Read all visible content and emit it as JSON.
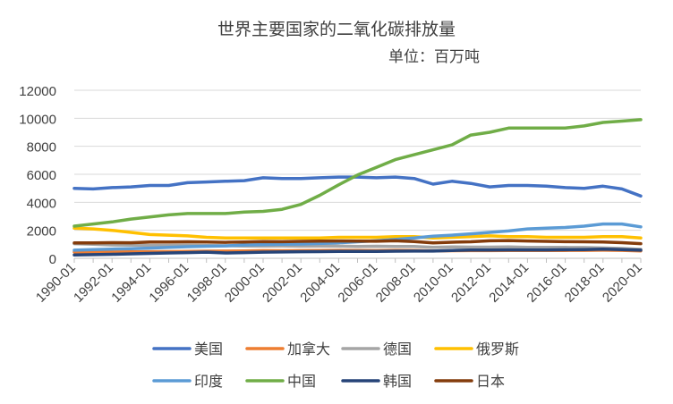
{
  "chart_data": {
    "type": "line",
    "title": "世界主要国家的二氧化碳排放量",
    "subtitle": "单位：百万吨",
    "xlabel": "",
    "ylabel": "",
    "ylim": [
      0,
      12000
    ],
    "yticks": [
      "0",
      "2000",
      "4000",
      "6000",
      "8000",
      "10000",
      "12000"
    ],
    "x": [
      "1990-01",
      "1991-01",
      "1992-01",
      "1993-01",
      "1994-01",
      "1995-01",
      "1996-01",
      "1997-01",
      "1998-01",
      "1999-01",
      "2000-01",
      "2001-01",
      "2002-01",
      "2003-01",
      "2004-01",
      "2005-01",
      "2006-01",
      "2007-01",
      "2008-01",
      "2009-01",
      "2010-01",
      "2011-01",
      "2012-01",
      "2013-01",
      "2014-01",
      "2015-01",
      "2016-01",
      "2017-01",
      "2018-01",
      "2019-01",
      "2020-01"
    ],
    "xtick_labels": [
      "1990-01",
      "1992-01",
      "1994-01",
      "1996-01",
      "1998-01",
      "2000-01",
      "2002-01",
      "2004-01",
      "2006-01",
      "2008-01",
      "2010-01",
      "2012-01",
      "2014-01",
      "2016-01",
      "2018-01",
      "2020-01"
    ],
    "grid": "horizontal",
    "legend_position": "bottom",
    "series": [
      {
        "name": "美国",
        "color": "#4472C4",
        "values": [
          5000,
          4950,
          5050,
          5100,
          5200,
          5200,
          5400,
          5450,
          5500,
          5550,
          5750,
          5700,
          5700,
          5750,
          5800,
          5800,
          5750,
          5800,
          5700,
          5300,
          5500,
          5350,
          5100,
          5200,
          5200,
          5150,
          5050,
          5000,
          5150,
          4950,
          4450
        ]
      },
      {
        "name": "加拿大",
        "color": "#ED7D31",
        "values": [
          450,
          440,
          450,
          460,
          470,
          480,
          500,
          510,
          520,
          530,
          550,
          540,
          550,
          560,
          570,
          560,
          550,
          570,
          560,
          530,
          540,
          550,
          550,
          560,
          560,
          560,
          560,
          570,
          580,
          570,
          530
        ]
      },
      {
        "name": "德国",
        "color": "#A5A5A5",
        "values": [
          1050,
          1000,
          950,
          940,
          920,
          920,
          940,
          910,
          900,
          880,
          880,
          890,
          870,
          880,
          870,
          850,
          860,
          840,
          840,
          780,
          820,
          800,
          800,
          820,
          780,
          780,
          780,
          770,
          740,
          700,
          640
        ]
      },
      {
        "name": "俄罗斯",
        "color": "#FFC000",
        "values": [
          2150,
          2100,
          2000,
          1850,
          1700,
          1650,
          1600,
          1500,
          1450,
          1450,
          1450,
          1450,
          1450,
          1450,
          1500,
          1500,
          1500,
          1550,
          1550,
          1450,
          1500,
          1550,
          1600,
          1550,
          1550,
          1500,
          1500,
          1500,
          1550,
          1550,
          1450
        ]
      },
      {
        "name": "印度",
        "color": "#5B9BD5",
        "values": [
          580,
          620,
          660,
          690,
          730,
          780,
          830,
          860,
          890,
          950,
          980,
          1000,
          1020,
          1060,
          1110,
          1180,
          1250,
          1350,
          1450,
          1580,
          1650,
          1750,
          1850,
          1950,
          2100,
          2150,
          2200,
          2300,
          2450,
          2450,
          2250
        ]
      },
      {
        "name": "中国",
        "color": "#70AD47",
        "values": [
          2300,
          2450,
          2600,
          2800,
          2950,
          3100,
          3200,
          3200,
          3200,
          3300,
          3350,
          3500,
          3850,
          4500,
          5250,
          5950,
          6500,
          7050,
          7400,
          7750,
          8100,
          8800,
          9000,
          9300,
          9300,
          9300,
          9300,
          9450,
          9700,
          9800,
          9900
        ]
      },
      {
        "name": "韩国",
        "color": "#264478",
        "values": [
          240,
          260,
          290,
          320,
          350,
          380,
          410,
          440,
          380,
          410,
          440,
          450,
          470,
          480,
          490,
          500,
          500,
          510,
          520,
          520,
          560,
          590,
          590,
          600,
          600,
          600,
          610,
          620,
          650,
          620,
          580
        ]
      },
      {
        "name": "日本",
        "color": "#843C0C",
        "values": [
          1100,
          1100,
          1120,
          1110,
          1160,
          1170,
          1180,
          1170,
          1140,
          1170,
          1200,
          1190,
          1210,
          1230,
          1240,
          1230,
          1220,
          1250,
          1200,
          1100,
          1150,
          1180,
          1250,
          1270,
          1240,
          1210,
          1190,
          1180,
          1160,
          1120,
          1050
        ]
      }
    ]
  }
}
